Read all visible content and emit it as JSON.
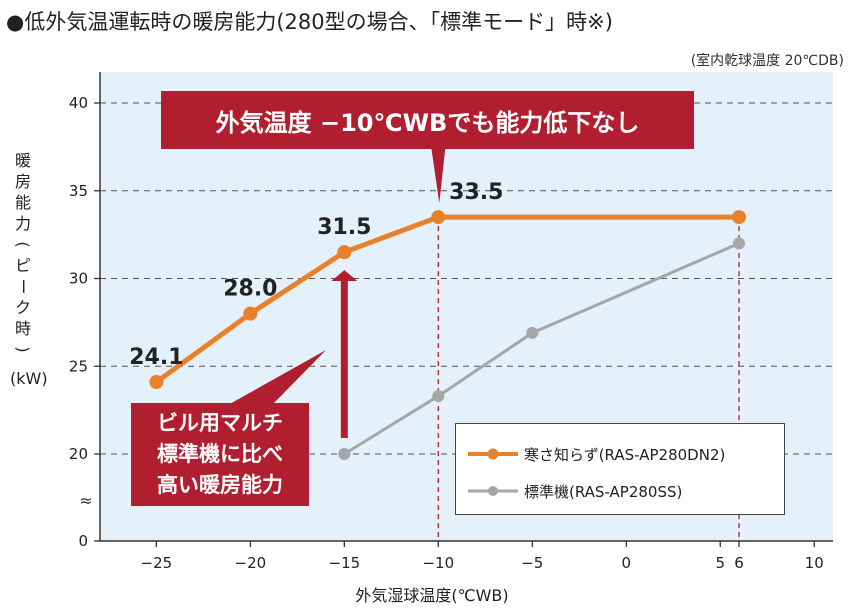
{
  "header": {
    "title": "●低外気温運転時の暖房能力(280型の場合、「標準モード」時※)",
    "condition": "(室内乾球温度 20℃DB)"
  },
  "callouts": {
    "top": "外気温度 −10℃WBでも能力低下なし",
    "middle_lines": [
      "ビル用マルチ",
      "標準機に比べ",
      "高い暖房能力"
    ]
  },
  "axis_break_symbol": "≈",
  "colors": {
    "cold_series": "#e8812a",
    "standard_series": "#a6a6a6",
    "callout_bg": "#b01e30",
    "plot_bg": "#e4f1fa",
    "guide_dashed": "#b01e30"
  },
  "chart_data": {
    "type": "line",
    "xlabel": "外気湿球温度(℃WB)",
    "ylabel_lines": [
      "暖",
      "房",
      "能",
      "力",
      "(",
      "ピ",
      "ー",
      "ク",
      "時",
      ")"
    ],
    "yunit": "(kW)",
    "x_ticks": [
      -25,
      -20,
      -15,
      -10,
      -5,
      0,
      5,
      6,
      10
    ],
    "x_tick_labels": [
      "−25",
      "−20",
      "−15",
      "−10",
      "−5",
      "0",
      "5",
      "6",
      "10"
    ],
    "xlim": [
      -28,
      11
    ],
    "y_ticks": [
      0,
      20,
      25,
      30,
      35,
      40
    ],
    "y_tick_labels": [
      "0",
      "20",
      "25",
      "30",
      "35",
      "40"
    ],
    "ylim_upper": [
      18,
      41
    ],
    "grid": "horizontal-dashed",
    "legend_position": "bottom-right",
    "series": [
      {
        "name": "寒さ知らず(RAS-AP280DN2)",
        "x": [
          -25,
          -20,
          -15,
          -10,
          6
        ],
        "y": [
          24.1,
          28.0,
          31.5,
          33.5,
          33.5
        ],
        "data_labels": [
          "24.1",
          "28.0",
          "31.5",
          "33.5",
          ""
        ]
      },
      {
        "name": "標準機(RAS-AP280SS)",
        "x": [
          -15,
          -10,
          -5,
          6
        ],
        "y": [
          20.0,
          23.3,
          26.9,
          32.0
        ]
      }
    ]
  }
}
